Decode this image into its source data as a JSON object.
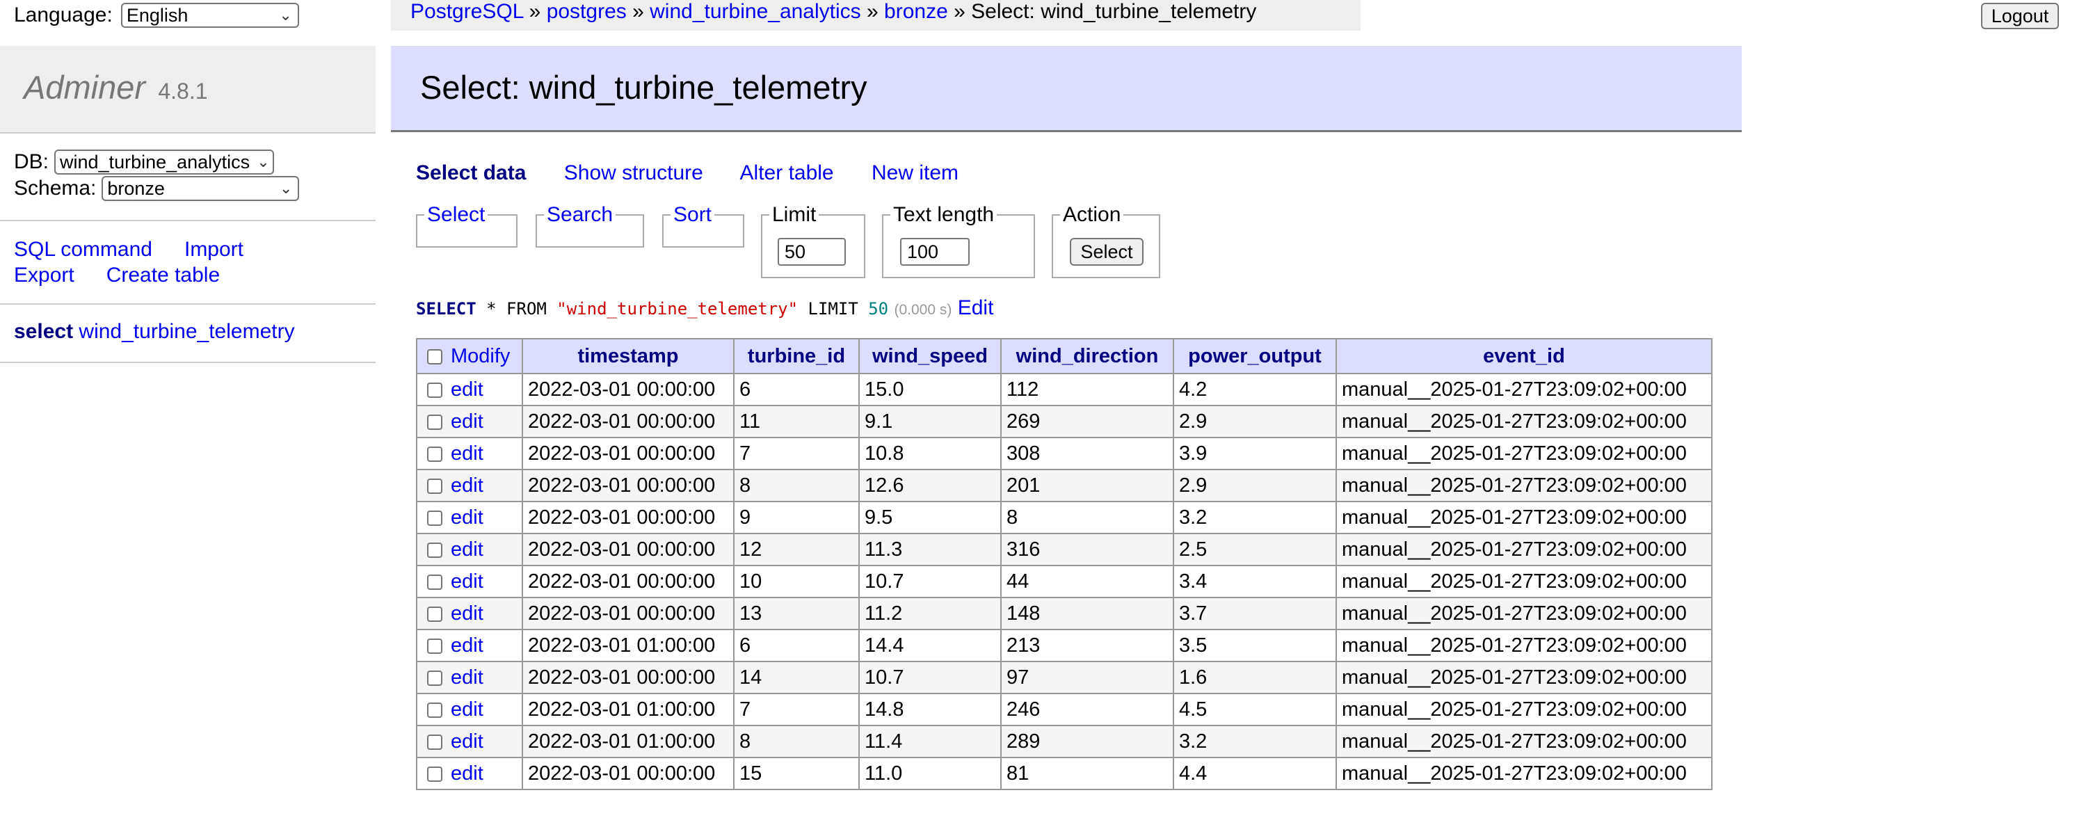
{
  "language": {
    "label": "Language:",
    "value": "English"
  },
  "breadcrumb": {
    "items": [
      "PostgreSQL",
      "postgres",
      "wind_turbine_analytics",
      "bronze"
    ],
    "separator": "»",
    "current": "Select: wind_turbine_telemetry"
  },
  "logout_label": "Logout",
  "brand": {
    "name": "Adminer",
    "version": "4.8.1"
  },
  "db": {
    "label": "DB:",
    "value": "wind_turbine_analytics"
  },
  "schema": {
    "label": "Schema:",
    "value": "bronze"
  },
  "side_links": [
    "SQL command",
    "Import",
    "Export",
    "Create table"
  ],
  "side_table": {
    "prefix": "select",
    "name": "wind_turbine_telemetry"
  },
  "page_title": "Select: wind_turbine_telemetry",
  "tabs": [
    "Select data",
    "Show structure",
    "Alter table",
    "New item"
  ],
  "fieldsets": {
    "select": "Select",
    "search": "Search",
    "sort": "Sort",
    "limit": {
      "legend": "Limit",
      "value": "50"
    },
    "text_length": {
      "legend": "Text length",
      "value": "100"
    },
    "action": {
      "legend": "Action",
      "button": "Select"
    }
  },
  "sql": {
    "kw_select": "SELECT",
    "star_from": " * FROM ",
    "table": "\"wind_turbine_telemetry\"",
    "kw_limit": " LIMIT ",
    "limit": "50",
    "time": "(0.000 s)",
    "edit_label": "Edit"
  },
  "table": {
    "modify_label": "Modify",
    "edit_label": "edit",
    "columns": [
      "timestamp",
      "turbine_id",
      "wind_speed",
      "wind_direction",
      "power_output",
      "event_id"
    ],
    "rows": [
      [
        "2022-03-01 00:00:00",
        "6",
        "15.0",
        "112",
        "4.2",
        "manual__2025-01-27T23:09:02+00:00"
      ],
      [
        "2022-03-01 00:00:00",
        "11",
        "9.1",
        "269",
        "2.9",
        "manual__2025-01-27T23:09:02+00:00"
      ],
      [
        "2022-03-01 00:00:00",
        "7",
        "10.8",
        "308",
        "3.9",
        "manual__2025-01-27T23:09:02+00:00"
      ],
      [
        "2022-03-01 00:00:00",
        "8",
        "12.6",
        "201",
        "2.9",
        "manual__2025-01-27T23:09:02+00:00"
      ],
      [
        "2022-03-01 00:00:00",
        "9",
        "9.5",
        "8",
        "3.2",
        "manual__2025-01-27T23:09:02+00:00"
      ],
      [
        "2022-03-01 00:00:00",
        "12",
        "11.3",
        "316",
        "2.5",
        "manual__2025-01-27T23:09:02+00:00"
      ],
      [
        "2022-03-01 00:00:00",
        "10",
        "10.7",
        "44",
        "3.4",
        "manual__2025-01-27T23:09:02+00:00"
      ],
      [
        "2022-03-01 00:00:00",
        "13",
        "11.2",
        "148",
        "3.7",
        "manual__2025-01-27T23:09:02+00:00"
      ],
      [
        "2022-03-01 01:00:00",
        "6",
        "14.4",
        "213",
        "3.5",
        "manual__2025-01-27T23:09:02+00:00"
      ],
      [
        "2022-03-01 00:00:00",
        "14",
        "10.7",
        "97",
        "1.6",
        "manual__2025-01-27T23:09:02+00:00"
      ],
      [
        "2022-03-01 01:00:00",
        "7",
        "14.8",
        "246",
        "4.5",
        "manual__2025-01-27T23:09:02+00:00"
      ],
      [
        "2022-03-01 01:00:00",
        "8",
        "11.4",
        "289",
        "3.2",
        "manual__2025-01-27T23:09:02+00:00"
      ],
      [
        "2022-03-01 00:00:00",
        "15",
        "11.0",
        "81",
        "4.4",
        "manual__2025-01-27T23:09:02+00:00"
      ]
    ]
  }
}
